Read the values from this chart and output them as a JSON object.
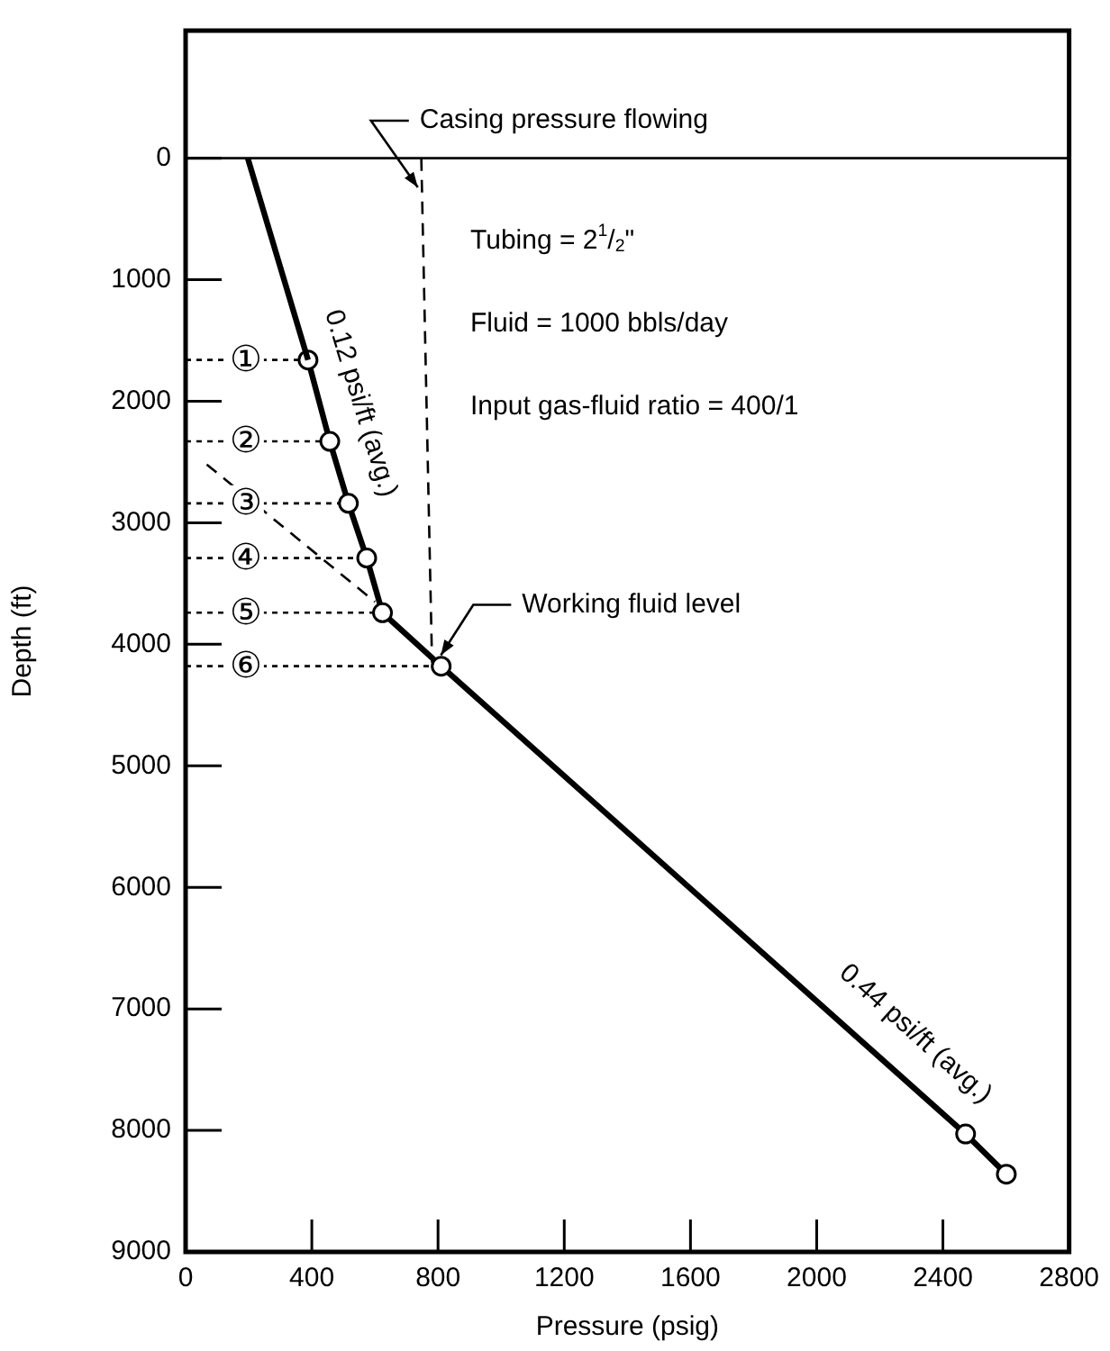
{
  "chart_data": {
    "type": "line",
    "xlabel": "Pressure (psig)",
    "ylabel": "Depth (ft)",
    "xlim": [
      0,
      2800
    ],
    "xticks": [
      0,
      400,
      800,
      1200,
      1600,
      2000,
      2400,
      2800
    ],
    "ylim": [
      9000,
      -1050
    ],
    "yticks": [
      0,
      1000,
      2000,
      3000,
      4000,
      5000,
      6000,
      7000,
      8000,
      9000
    ],
    "grid": false,
    "legend": false,
    "ref_lines": [
      {
        "axis": "y",
        "value": 0,
        "color": "#000000"
      }
    ],
    "series": [
      {
        "x": [
          197,
          388
        ],
        "values": [
          0,
          1660
        ],
        "color": "#000000",
        "line_style": "solid"
      },
      {
        "x": [
          388,
          457,
          516,
          574,
          624,
          810,
          2472,
          2601
        ],
        "values": [
          1660,
          2330,
          2840,
          3290,
          3740,
          4180,
          8030,
          8360
        ],
        "color": "#000000",
        "line_style": "solid",
        "marker": "circle"
      },
      {
        "x": [
          747,
          781
        ],
        "values": [
          0,
          4150
        ],
        "color": "#000000",
        "line_style": "dashed"
      },
      {
        "x": [
          67,
          600
        ],
        "values": [
          2520,
          3650
        ],
        "color": "#000000",
        "line_style": "dashed"
      },
      {
        "x": [
          0,
          388
        ],
        "values": [
          1660,
          1660
        ],
        "color": "#000000",
        "line_style": "dotted"
      },
      {
        "x": [
          0,
          457
        ],
        "values": [
          2330,
          2330
        ],
        "color": "#000000",
        "line_style": "dotted"
      },
      {
        "x": [
          0,
          516
        ],
        "values": [
          2840,
          2840
        ],
        "color": "#000000",
        "line_style": "dotted"
      },
      {
        "x": [
          0,
          574
        ],
        "values": [
          3290,
          3290
        ],
        "color": "#000000",
        "line_style": "dotted"
      },
      {
        "x": [
          0,
          624
        ],
        "values": [
          3740,
          3740
        ],
        "color": "#000000",
        "line_style": "dotted"
      },
      {
        "x": [
          0,
          810
        ],
        "values": [
          4180,
          4180
        ],
        "color": "#000000",
        "line_style": "dotted"
      }
    ],
    "annotations": [
      "0.12 psi/ft (avg.)",
      "0.44 psi/ft (avg.)",
      {
        "text": "Casing pressure flowing",
        "x": 736,
        "y": 240
      },
      {
        "text": "Working fluid level",
        "x": 809,
        "y": 4090
      },
      {
        "text": "①",
        "x": 191,
        "y": 1660
      },
      {
        "text": "②",
        "x": 191,
        "y": 2330
      },
      {
        "text": "③",
        "x": 191,
        "y": 2840
      },
      {
        "text": "④",
        "x": 191,
        "y": 3290
      },
      {
        "text": "⑤",
        "x": 191,
        "y": 3740
      },
      {
        "text": "⑥",
        "x": 191,
        "y": 4180
      },
      "Tubing = 2$^{1}$/$_{2}$\"",
      "Fluid = 1000 bbls/day",
      "Input gas-fluid ratio = 400/1"
    ]
  }
}
